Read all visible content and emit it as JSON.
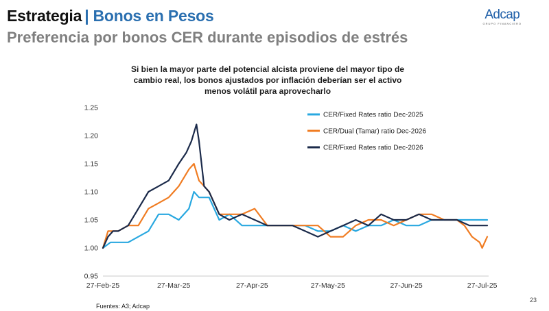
{
  "header": {
    "section": "Estrategia",
    "separator": "|",
    "topic": "Bonos en Pesos",
    "subtitle": "Preferencia por bonos CER durante episodios de estrés"
  },
  "logo": {
    "name": "Adcap",
    "tagline": "GRUPO FINANCIERO"
  },
  "colors": {
    "topic": "#2a6fb0",
    "subtitle": "#7f7f7f",
    "series": [
      "#29a8e0",
      "#f07c22",
      "#1b2a4a"
    ]
  },
  "chart_data": {
    "type": "line",
    "title_lines": [
      "Si bien la mayor parte del potencial alcista proviene del mayor tipo de",
      "cambio real, los bonos ajustados por inflación deberían ser el activo",
      "menos volátil para aprovecharlo"
    ],
    "xlabel": "",
    "ylabel": "",
    "ylim": [
      0.95,
      1.25
    ],
    "y_ticks": [
      "0.95",
      "1.00",
      "1.05",
      "1.10",
      "1.15",
      "1.20",
      "1.25"
    ],
    "y_tick_values": [
      0.95,
      1.0,
      1.05,
      1.1,
      1.15,
      1.2,
      1.25
    ],
    "x_ticks": [
      "27-Feb-25",
      "27-Mar-25",
      "27-Apr-25",
      "27-May-25",
      "27-Jun-25",
      "27-Jul-25"
    ],
    "x_tick_days": [
      0,
      28,
      59,
      89,
      120,
      150
    ],
    "xlim_days": [
      0,
      152
    ],
    "legend_position": "top-right",
    "series": [
      {
        "name": "CER/Fixed Rates ratio Dec-2025",
        "days": [
          0,
          3,
          6,
          10,
          14,
          18,
          22,
          26,
          30,
          34,
          36,
          38,
          40,
          42,
          46,
          50,
          55,
          60,
          65,
          70,
          75,
          80,
          85,
          90,
          95,
          100,
          105,
          110,
          115,
          120,
          125,
          130,
          135,
          140,
          145,
          148,
          150,
          152
        ],
        "values": [
          1.0,
          1.01,
          1.01,
          1.01,
          1.02,
          1.03,
          1.06,
          1.06,
          1.05,
          1.07,
          1.1,
          1.09,
          1.09,
          1.09,
          1.05,
          1.06,
          1.04,
          1.04,
          1.04,
          1.04,
          1.04,
          1.04,
          1.03,
          1.03,
          1.04,
          1.03,
          1.04,
          1.04,
          1.05,
          1.04,
          1.04,
          1.05,
          1.05,
          1.05,
          1.05,
          1.05,
          1.05,
          1.05
        ]
      },
      {
        "name": "CER/Dual (Tamar) ratio Dec-2026",
        "days": [
          0,
          2,
          4,
          6,
          10,
          14,
          18,
          22,
          26,
          30,
          34,
          36,
          38,
          40,
          42,
          46,
          50,
          55,
          60,
          65,
          70,
          75,
          80,
          85,
          90,
          95,
          100,
          105,
          110,
          115,
          120,
          125,
          130,
          135,
          140,
          143,
          146,
          149,
          150,
          152
        ],
        "values": [
          1.0,
          1.03,
          1.03,
          1.03,
          1.04,
          1.04,
          1.07,
          1.08,
          1.09,
          1.11,
          1.14,
          1.15,
          1.12,
          1.11,
          1.1,
          1.06,
          1.06,
          1.06,
          1.07,
          1.04,
          1.04,
          1.04,
          1.04,
          1.04,
          1.02,
          1.02,
          1.04,
          1.05,
          1.05,
          1.04,
          1.05,
          1.06,
          1.06,
          1.05,
          1.05,
          1.04,
          1.02,
          1.01,
          1.0,
          1.02
        ]
      },
      {
        "name": "CER/Fixed Rates ratio Dec-2026",
        "days": [
          0,
          2,
          4,
          6,
          10,
          14,
          18,
          22,
          26,
          30,
          33,
          35,
          37,
          38,
          40,
          42,
          46,
          50,
          55,
          60,
          65,
          70,
          75,
          80,
          85,
          90,
          95,
          100,
          105,
          110,
          115,
          120,
          125,
          130,
          135,
          140,
          145,
          148,
          150,
          152
        ],
        "values": [
          1.0,
          1.02,
          1.03,
          1.03,
          1.04,
          1.07,
          1.1,
          1.11,
          1.12,
          1.15,
          1.17,
          1.19,
          1.22,
          1.19,
          1.11,
          1.1,
          1.06,
          1.05,
          1.06,
          1.05,
          1.04,
          1.04,
          1.04,
          1.03,
          1.02,
          1.03,
          1.04,
          1.05,
          1.04,
          1.06,
          1.05,
          1.05,
          1.06,
          1.05,
          1.05,
          1.05,
          1.04,
          1.04,
          1.04,
          1.04
        ]
      }
    ]
  },
  "footer": {
    "source": "Fuentes: A3; Adcap",
    "page_number": "23"
  }
}
